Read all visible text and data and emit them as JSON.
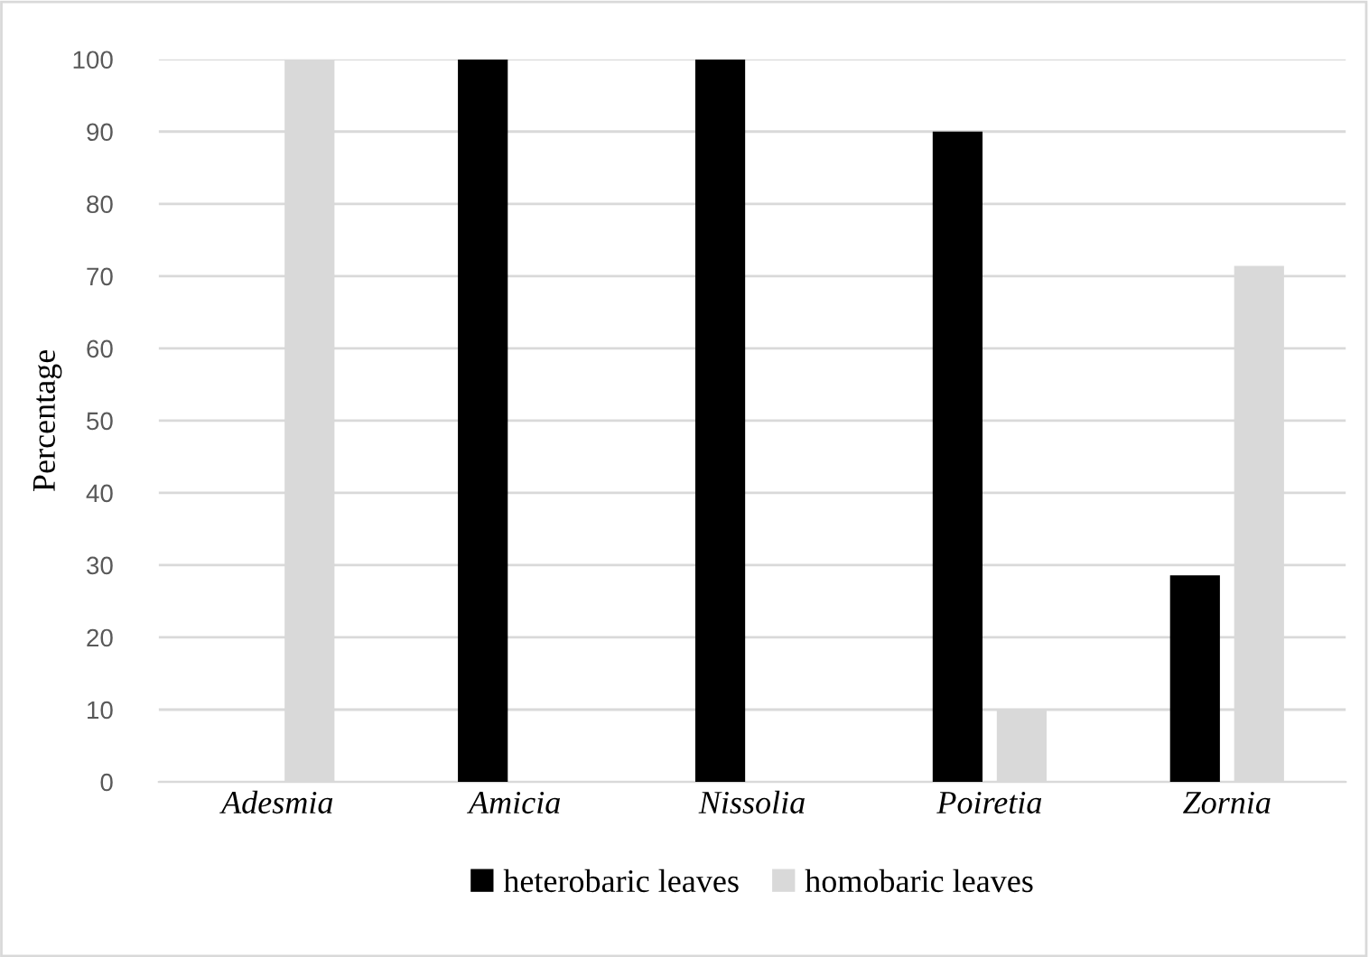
{
  "chart_data": {
    "type": "bar",
    "ylabel": "Percentage",
    "categories": [
      "Adesmia",
      "Amicia",
      "Nissolia",
      "Poiretia",
      "Zornia"
    ],
    "series": [
      {
        "name": "heterobaric leaves",
        "color": "#000000",
        "values": [
          0,
          100,
          100,
          90,
          28.6
        ]
      },
      {
        "name": "homobaric leaves",
        "color": "#d9d9d9",
        "values": [
          100,
          0,
          0,
          10,
          71.4
        ]
      }
    ],
    "ylim": [
      0,
      100
    ],
    "yticks": [
      0,
      10,
      20,
      30,
      40,
      50,
      60,
      70,
      80,
      90,
      100
    ],
    "grid": "y",
    "legend": "bottom"
  }
}
